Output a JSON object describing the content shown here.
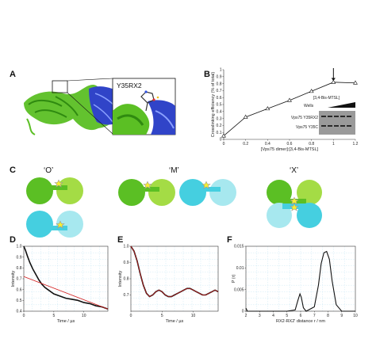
{
  "panels": {
    "A": {
      "label": "A",
      "inset_label": "Y35RX2"
    },
    "B": {
      "label": "B"
    },
    "C": {
      "label": "C",
      "states": [
        "‘O’",
        "‘M’",
        "‘X’"
      ]
    },
    "D": {
      "label": "D"
    },
    "E": {
      "label": "E"
    },
    "F": {
      "label": "F"
    }
  },
  "colors": {
    "green_dark": "#5bbf24",
    "green_light": "#a4dc45",
    "cyan_dark": "#45cfe0",
    "cyan_light": "#a7e8ef",
    "ribbon_blue": "#3044c8",
    "star": "#f7ef30",
    "fit_red": "#d21a1a",
    "grid": "#bfe2f2"
  },
  "chart_data": [
    {
      "panel": "B",
      "type": "line",
      "x": [
        0,
        0.2,
        0.4,
        0.6,
        0.8,
        1.0,
        1.2
      ],
      "y": [
        0.05,
        0.32,
        0.44,
        0.56,
        0.69,
        0.82,
        0.81
      ],
      "xlabel": "[Vps75 dimer]:[3,4-Bis-MTSL]",
      "ylabel": "Crosslinking efficiency (% of total)",
      "xlim": [
        0,
        1.2
      ],
      "ylim": [
        0,
        1
      ],
      "xticks": [
        "0",
        "0.2",
        "0.4",
        "0.6",
        "0.8",
        "1",
        "1.2"
      ],
      "yticks": [
        "0",
        "0.1",
        "0.2",
        "0.3",
        "0.4",
        "0.5",
        "0.6",
        "0.7",
        "0.8",
        "0.9",
        "1"
      ],
      "marker": "open-triangle",
      "arrow_at_x": 1.0,
      "inset": {
        "title": "[3,4-Bis-MTSL]",
        "wells_label": "Wells",
        "rows": [
          "Vps75 Y35RX2",
          "Vps75 Y35C"
        ]
      }
    },
    {
      "panel": "D",
      "type": "line",
      "xlabel": "Time / µs",
      "ylabel": "Intensity",
      "xlim": [
        0,
        14
      ],
      "ylim": [
        0.4,
        1.0
      ],
      "xticks": [
        "0",
        "5",
        "10"
      ],
      "yticks": [
        "0.4",
        "0.5",
        "0.6",
        "0.7",
        "0.8",
        "0.9",
        "1.0"
      ],
      "grid": true,
      "series": [
        {
          "role": "data",
          "x": [
            0,
            0.3,
            0.6,
            1,
            1.5,
            2,
            2.5,
            3,
            3.5,
            4,
            5,
            6,
            7,
            8,
            9,
            10,
            11,
            12,
            13,
            14
          ],
          "y": [
            1.0,
            0.96,
            0.91,
            0.85,
            0.79,
            0.74,
            0.69,
            0.65,
            0.62,
            0.6,
            0.56,
            0.54,
            0.52,
            0.51,
            0.5,
            0.48,
            0.47,
            0.45,
            0.44,
            0.42
          ]
        },
        {
          "role": "fit",
          "x": [
            0,
            14
          ],
          "y": [
            0.72,
            0.42
          ]
        }
      ]
    },
    {
      "panel": "E",
      "type": "line",
      "xlabel": "Time / µs",
      "ylabel": "Intensity",
      "xlim": [
        0,
        14
      ],
      "ylim": [
        0.6,
        1.0
      ],
      "xticks": [
        "0",
        "5",
        "10"
      ],
      "yticks": [
        "0.7",
        "0.8",
        "0.9",
        "1.0"
      ],
      "grid": true,
      "series": [
        {
          "role": "data",
          "x": [
            0,
            0.5,
            1,
            1.5,
            2,
            2.5,
            3,
            3.5,
            4,
            4.5,
            5,
            5.5,
            6,
            6.5,
            7,
            7.5,
            8,
            8.5,
            9,
            9.5,
            10,
            10.5,
            11,
            11.5,
            12,
            12.5,
            13,
            13.5,
            14
          ],
          "y": [
            1.0,
            0.97,
            0.91,
            0.83,
            0.76,
            0.71,
            0.69,
            0.7,
            0.72,
            0.73,
            0.72,
            0.7,
            0.69,
            0.69,
            0.7,
            0.71,
            0.72,
            0.73,
            0.74,
            0.74,
            0.73,
            0.72,
            0.71,
            0.7,
            0.7,
            0.71,
            0.72,
            0.73,
            0.72
          ]
        },
        {
          "role": "fit",
          "x": [
            0,
            0.5,
            1,
            1.5,
            2,
            2.5,
            3,
            3.5,
            4,
            4.5,
            5,
            5.5,
            6,
            6.5,
            7,
            7.5,
            8,
            8.5,
            9,
            9.5,
            10,
            10.5,
            11,
            11.5,
            12,
            12.5,
            13,
            13.5,
            14
          ],
          "y": [
            1.0,
            0.97,
            0.91,
            0.83,
            0.76,
            0.71,
            0.69,
            0.7,
            0.72,
            0.73,
            0.72,
            0.7,
            0.69,
            0.69,
            0.7,
            0.71,
            0.72,
            0.73,
            0.74,
            0.74,
            0.73,
            0.72,
            0.71,
            0.7,
            0.7,
            0.71,
            0.72,
            0.73,
            0.72
          ]
        }
      ]
    },
    {
      "panel": "F",
      "type": "line",
      "xlabel": "RX2-RX2' distance r / nm",
      "ylabel": "P (r)",
      "xlim": [
        2,
        10
      ],
      "ylim": [
        0,
        0.015
      ],
      "xticks": [
        "2",
        "3",
        "4",
        "5",
        "6",
        "7",
        "8",
        "9",
        "10"
      ],
      "yticks": [
        "0",
        "0.005",
        "0.01",
        "0.015"
      ],
      "grid": true,
      "series": [
        {
          "role": "distribution",
          "x": [
            2,
            2.05,
            2.1,
            2.3,
            3,
            4,
            5,
            5.6,
            5.8,
            5.95,
            6.05,
            6.2,
            6.4,
            7.0,
            7.3,
            7.5,
            7.7,
            7.9,
            8.1,
            8.3,
            8.6,
            9,
            10
          ],
          "y": [
            0.0007,
            0.0004,
            0.0,
            0.0,
            0.0,
            0.0,
            0.0,
            0.0003,
            0.0025,
            0.004,
            0.0032,
            0.0008,
            0.0,
            0.001,
            0.006,
            0.011,
            0.0135,
            0.0138,
            0.012,
            0.007,
            0.0015,
            0.0,
            0.0
          ]
        }
      ]
    }
  ]
}
